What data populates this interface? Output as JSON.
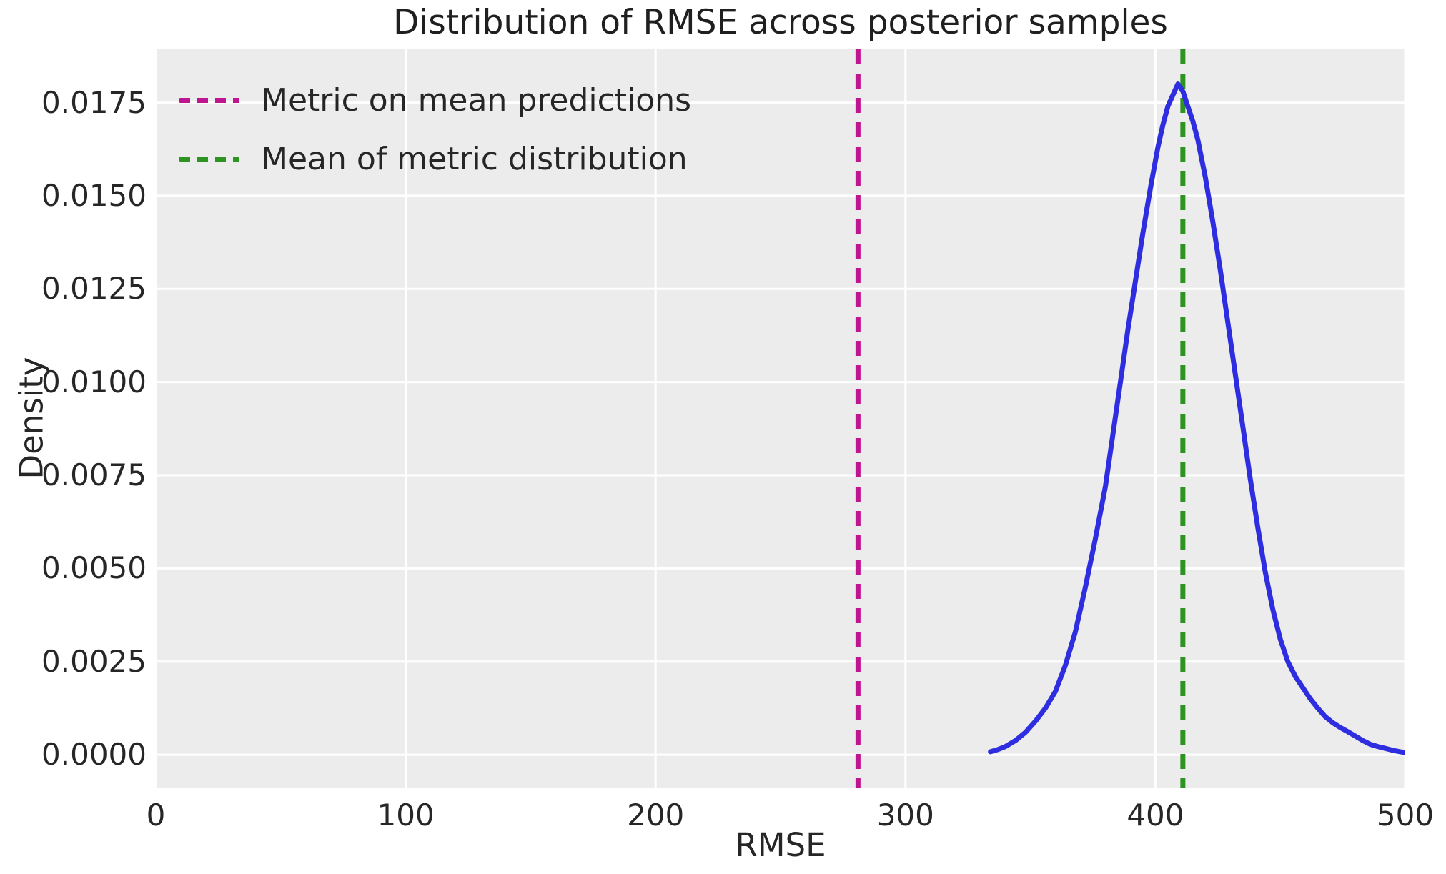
{
  "chart_data": {
    "type": "line",
    "kind": "kde-density",
    "title": "Distribution of RMSE across posterior samples",
    "xlabel": "RMSE",
    "ylabel": "Density",
    "xlim": [
      0,
      500
    ],
    "ylim": [
      -0.00088,
      0.01893
    ],
    "grid": true,
    "legend_position": "upper left",
    "legend_frame": false,
    "xtick_values": [
      0,
      100,
      200,
      300,
      400,
      500
    ],
    "xtick_labels": [
      "0",
      "100",
      "200",
      "300",
      "400",
      "500"
    ],
    "ytick_values": [
      0.0,
      0.0025,
      0.005,
      0.0075,
      0.01,
      0.0125,
      0.015,
      0.0175
    ],
    "ytick_labels": [
      "0.0000",
      "0.0025",
      "0.0050",
      "0.0075",
      "0.0100",
      "0.0125",
      "0.0150",
      "0.0175"
    ],
    "series": [
      {
        "name": "rmse-density-curve",
        "color": "#2e2ee0",
        "style": "solid",
        "peak": {
          "x": 409,
          "y": 0.018
        },
        "points": [
          [
            334,
            8e-05
          ],
          [
            337,
            0.00014
          ],
          [
            340,
            0.00022
          ],
          [
            344,
            0.00038
          ],
          [
            348,
            0.0006
          ],
          [
            352,
            0.0009
          ],
          [
            356,
            0.00125
          ],
          [
            360,
            0.0017
          ],
          [
            364,
            0.0024
          ],
          [
            368,
            0.0033
          ],
          [
            372,
            0.0045
          ],
          [
            376,
            0.0058
          ],
          [
            380,
            0.0072
          ],
          [
            383,
            0.0086
          ],
          [
            386,
            0.01
          ],
          [
            389,
            0.0114
          ],
          [
            392,
            0.0127
          ],
          [
            395,
            0.014
          ],
          [
            398,
            0.0152
          ],
          [
            401,
            0.0163
          ],
          [
            403,
            0.0169
          ],
          [
            405,
            0.0174
          ],
          [
            407,
            0.0177
          ],
          [
            409,
            0.018
          ],
          [
            411,
            0.0178
          ],
          [
            413,
            0.0174
          ],
          [
            415,
            0.017
          ],
          [
            417,
            0.0165
          ],
          [
            420,
            0.0155
          ],
          [
            423,
            0.0143
          ],
          [
            426,
            0.013
          ],
          [
            429,
            0.0116
          ],
          [
            432,
            0.0102
          ],
          [
            435,
            0.0088
          ],
          [
            438,
            0.0074
          ],
          [
            441,
            0.0061
          ],
          [
            444,
            0.0049
          ],
          [
            447,
            0.0039
          ],
          [
            450,
            0.0031
          ],
          [
            453,
            0.0025
          ],
          [
            456,
            0.0021
          ],
          [
            459,
            0.0018
          ],
          [
            462,
            0.0015
          ],
          [
            465,
            0.00125
          ],
          [
            468,
            0.00102
          ],
          [
            471,
            0.00086
          ],
          [
            474,
            0.00073
          ],
          [
            477,
            0.00062
          ],
          [
            480,
            0.0005
          ],
          [
            483,
            0.00038
          ],
          [
            486,
            0.00028
          ],
          [
            489,
            0.00022
          ],
          [
            492,
            0.00017
          ],
          [
            495,
            0.00012
          ],
          [
            498,
            8e-05
          ],
          [
            500,
            6e-05
          ]
        ]
      }
    ],
    "vlines": [
      {
        "name": "metric-on-mean-predictions-line",
        "label": "Metric on mean predictions",
        "x": 281,
        "color": "#c01591",
        "style": "dashed"
      },
      {
        "name": "mean-of-metric-distribution-line",
        "label": "Mean of metric distribution",
        "x": 411,
        "color": "#2e9421",
        "style": "dashed"
      }
    ],
    "colors": {
      "figure_bg": "#ffffff",
      "plot_bg": "#ececec",
      "grid": "#ffffff",
      "text": "#262626"
    }
  }
}
